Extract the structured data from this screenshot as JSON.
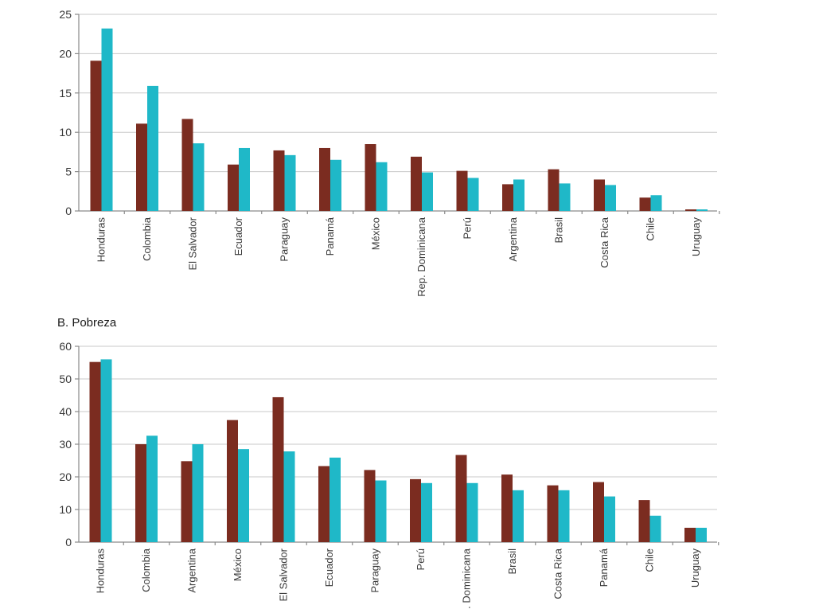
{
  "colors": {
    "series_1": "#7b2c20",
    "series_2": "#1fb8c8"
  },
  "chart_data": [
    {
      "type": "bar",
      "title": "",
      "xlabel": "",
      "ylabel": "",
      "ylim": [
        0,
        25
      ],
      "yticks": [
        0,
        5,
        10,
        15,
        20,
        25
      ],
      "grid": true,
      "categories": [
        "Honduras",
        "Colombia",
        "El Salvador",
        "Ecuador",
        "Paraguay",
        "Panamá",
        "México",
        "Rep. Dominicana",
        "Perú",
        "Argentina",
        "Brasil",
        "Costa Rica",
        "Chile",
        "Uruguay"
      ],
      "series": [
        {
          "values": [
            19.1,
            11.1,
            11.7,
            5.9,
            7.7,
            8.0,
            8.5,
            6.9,
            5.1,
            3.4,
            5.3,
            4.0,
            1.7,
            0.2
          ]
        },
        {
          "values": [
            23.2,
            15.9,
            8.6,
            8.0,
            7.1,
            6.5,
            6.2,
            4.9,
            4.2,
            4.0,
            3.5,
            3.3,
            2.0,
            0.2
          ]
        }
      ]
    },
    {
      "type": "bar",
      "title": "B. Pobreza",
      "xlabel": "",
      "ylabel": "",
      "ylim": [
        0,
        60
      ],
      "yticks": [
        0,
        10,
        20,
        30,
        40,
        50,
        60
      ],
      "grid": true,
      "categories": [
        "Honduras",
        "Colombia",
        "Argentina",
        "México",
        "El Salvador",
        "Ecuador",
        "Paraguay",
        "Perú",
        ". Dominicana",
        "Brasil",
        "Costa Rica",
        "Panamá",
        "Chile",
        "Uruguay"
      ],
      "series": [
        {
          "values": [
            55.2,
            30.0,
            24.8,
            37.4,
            44.4,
            23.3,
            22.1,
            19.3,
            26.7,
            20.7,
            17.4,
            18.4,
            12.9,
            4.4
          ]
        },
        {
          "values": [
            56.0,
            32.6,
            30.0,
            28.5,
            27.8,
            25.9,
            18.9,
            18.1,
            18.1,
            15.9,
            15.9,
            14.0,
            8.1,
            4.4
          ]
        }
      ]
    }
  ]
}
